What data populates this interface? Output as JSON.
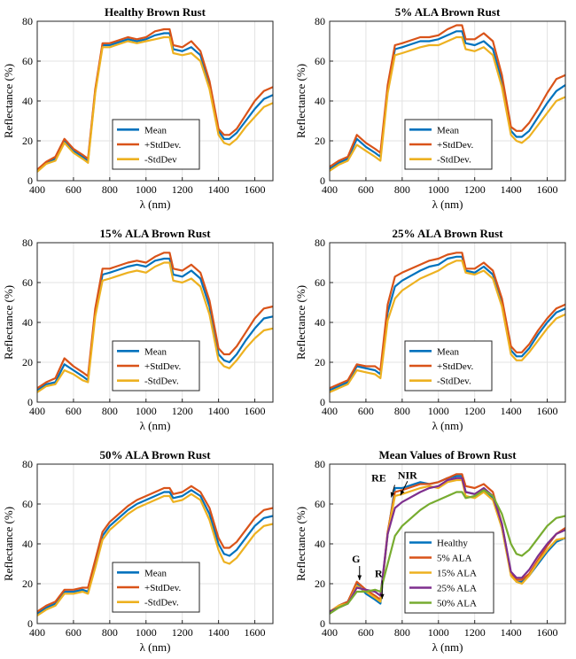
{
  "colors": {
    "mean": "#0072BD",
    "plus": "#D95319",
    "minus": "#EDB120",
    "purple": "#7E2F8E",
    "green": "#77AC30"
  },
  "chart_data": [
    {
      "type": "line",
      "title": "Healthy Brown Rust",
      "xlabel": "λ  (nm)",
      "ylabel": "Reflectance  (%)",
      "xlim": [
        400,
        1700
      ],
      "ylim": [
        0,
        80
      ],
      "xticks": [
        "400",
        "600",
        "800",
        "1000",
        "1200",
        "1400",
        "1600"
      ],
      "yticks": [
        "0",
        "20",
        "40",
        "60",
        "80"
      ],
      "x": [
        400,
        450,
        500,
        550,
        600,
        650,
        680,
        720,
        760,
        800,
        900,
        950,
        1000,
        1050,
        1100,
        1130,
        1150,
        1200,
        1250,
        1300,
        1350,
        1400,
        1430,
        1460,
        1500,
        1550,
        1600,
        1650,
        1700
      ],
      "series": [
        {
          "name": "Mean",
          "color": "mean",
          "values": [
            5,
            9,
            11,
            20,
            15,
            12,
            10,
            45,
            68,
            68,
            71,
            70,
            71,
            73,
            74,
            74,
            66,
            65,
            67,
            63,
            48,
            25,
            21,
            21,
            24,
            30,
            36,
            41,
            43
          ]
        },
        {
          "name": "+StdDev.",
          "color": "plus",
          "values": [
            5.5,
            9.5,
            12,
            21,
            16,
            13,
            11,
            46,
            69,
            69,
            72,
            71,
            72,
            75,
            76,
            76,
            68,
            67,
            70,
            65,
            50,
            26,
            23,
            23,
            26,
            33,
            40,
            45,
            47
          ]
        },
        {
          "name": "-StdDev",
          "color": "minus",
          "values": [
            4.5,
            8.5,
            10,
            19,
            14,
            11,
            9,
            44,
            67,
            67,
            70,
            69,
            70,
            71,
            72,
            72,
            64,
            63,
            64,
            60,
            46,
            23,
            19,
            18,
            21,
            27,
            32,
            37,
            39
          ]
        }
      ],
      "legend": "bottom-center"
    },
    {
      "type": "line",
      "title": "5% ALA Brown Rust",
      "xlabel": "λ  (nm)",
      "ylabel": "Reflectance  (%)",
      "xlim": [
        400,
        1700
      ],
      "ylim": [
        0,
        80
      ],
      "xticks": [
        "400",
        "600",
        "800",
        "1000",
        "1200",
        "1400",
        "1600"
      ],
      "yticks": [
        "0",
        "20",
        "40",
        "60",
        "80"
      ],
      "x": [
        400,
        450,
        500,
        550,
        600,
        650,
        680,
        720,
        760,
        800,
        900,
        950,
        1000,
        1050,
        1100,
        1130,
        1150,
        1200,
        1250,
        1300,
        1350,
        1400,
        1430,
        1460,
        1500,
        1550,
        1600,
        1650,
        1700
      ],
      "series": [
        {
          "name": "Mean",
          "color": "mean",
          "values": [
            6,
            9,
            11,
            21,
            17,
            14,
            12,
            46,
            66,
            67,
            70,
            70,
            71,
            73,
            75,
            75,
            69,
            68,
            70,
            66,
            50,
            25,
            22,
            22,
            25,
            32,
            39,
            45,
            48
          ]
        },
        {
          "name": "+StdDev.",
          "color": "plus",
          "values": [
            7,
            10,
            12,
            23,
            19,
            16,
            14,
            48,
            68,
            69,
            72,
            72,
            73,
            76,
            78,
            78,
            71,
            71,
            74,
            70,
            53,
            27,
            25,
            25,
            29,
            36,
            44,
            51,
            53
          ]
        },
        {
          "name": "-StdDev.",
          "color": "minus",
          "values": [
            5,
            8,
            10,
            18,
            15,
            12,
            10,
            44,
            63,
            64,
            67,
            68,
            68,
            70,
            72,
            72,
            66,
            65,
            67,
            63,
            47,
            23,
            20,
            19,
            22,
            28,
            34,
            40,
            42
          ]
        }
      ],
      "legend": "bottom-center"
    },
    {
      "type": "line",
      "title": "15% ALA Brown Rust",
      "xlabel": "λ  (nm)",
      "ylabel": "Reflectance  (%)",
      "xlim": [
        400,
        1700
      ],
      "ylim": [
        0,
        80
      ],
      "xticks": [
        "400",
        "600",
        "800",
        "1000",
        "1200",
        "1400",
        "1600"
      ],
      "yticks": [
        "0",
        "20",
        "40",
        "60",
        "80"
      ],
      "x": [
        400,
        450,
        500,
        550,
        600,
        650,
        680,
        720,
        760,
        800,
        900,
        950,
        1000,
        1050,
        1100,
        1130,
        1150,
        1200,
        1250,
        1300,
        1350,
        1400,
        1430,
        1460,
        1500,
        1550,
        1600,
        1650,
        1700
      ],
      "series": [
        {
          "name": "Mean",
          "color": "mean",
          "values": [
            6,
            9,
            10,
            19,
            16,
            13,
            11,
            45,
            64,
            65,
            68,
            69,
            68,
            71,
            72,
            72,
            64,
            63,
            66,
            62,
            48,
            24,
            21,
            20,
            24,
            31,
            37,
            42,
            43
          ]
        },
        {
          "name": "+StdDev.",
          "color": "plus",
          "values": [
            7,
            10,
            12,
            22,
            18,
            15,
            13,
            47,
            67,
            67,
            70,
            71,
            70,
            73,
            75,
            75,
            67,
            66,
            69,
            65,
            51,
            27,
            24,
            24,
            28,
            35,
            42,
            47,
            48
          ]
        },
        {
          "name": "-StdDev.",
          "color": "minus",
          "values": [
            5,
            8,
            9,
            16,
            14,
            11,
            10,
            43,
            61,
            62,
            65,
            66,
            65,
            68,
            70,
            70,
            61,
            60,
            62,
            58,
            44,
            21,
            18,
            17,
            21,
            27,
            32,
            36,
            37
          ]
        }
      ],
      "legend": "bottom-center"
    },
    {
      "type": "line",
      "title": "25% ALA Brown Rust",
      "xlabel": "λ  (nm)",
      "ylabel": "Reflectance  (%)",
      "xlim": [
        400,
        1700
      ],
      "ylim": [
        0,
        80
      ],
      "xticks": [
        "400",
        "600",
        "800",
        "1000",
        "1200",
        "1400",
        "1600"
      ],
      "yticks": [
        "0",
        "20",
        "40",
        "60",
        "80"
      ],
      "x": [
        400,
        450,
        500,
        550,
        600,
        650,
        680,
        720,
        760,
        800,
        900,
        950,
        1000,
        1050,
        1100,
        1130,
        1150,
        1200,
        1250,
        1300,
        1350,
        1400,
        1430,
        1460,
        1500,
        1550,
        1600,
        1650,
        1700
      ],
      "series": [
        {
          "name": "Mean",
          "color": "mean",
          "values": [
            6,
            8,
            10,
            18,
            17,
            16,
            14,
            45,
            58,
            61,
            66,
            68,
            69,
            72,
            73,
            73,
            66,
            65,
            68,
            64,
            50,
            26,
            23,
            23,
            27,
            34,
            40,
            45,
            47
          ]
        },
        {
          "name": "+StdDev.",
          "color": "plus",
          "values": [
            7,
            9,
            11,
            19,
            18,
            18,
            16,
            49,
            63,
            65,
            69,
            71,
            72,
            74,
            75,
            75,
            67,
            67,
            70,
            66,
            52,
            28,
            25,
            25,
            29,
            36,
            42,
            47,
            49
          ]
        },
        {
          "name": "-StdDev.",
          "color": "minus",
          "values": [
            5,
            7,
            9,
            16,
            15,
            14,
            12,
            41,
            52,
            56,
            62,
            64,
            66,
            69,
            71,
            71,
            65,
            64,
            66,
            62,
            48,
            24,
            21,
            21,
            25,
            31,
            37,
            42,
            44
          ]
        }
      ],
      "legend": "bottom-center"
    },
    {
      "type": "line",
      "title": "50% ALA Brown Rust",
      "xlabel": "λ  (nm)",
      "ylabel": "Reflectance  (%)",
      "xlim": [
        400,
        1700
      ],
      "ylim": [
        0,
        80
      ],
      "xticks": [
        "400",
        "600",
        "800",
        "1000",
        "1200",
        "1400",
        "1600"
      ],
      "yticks": [
        "0",
        "20",
        "40",
        "60",
        "80"
      ],
      "x": [
        400,
        450,
        500,
        550,
        600,
        650,
        680,
        720,
        760,
        800,
        900,
        950,
        1000,
        1050,
        1100,
        1130,
        1150,
        1200,
        1250,
        1300,
        1350,
        1400,
        1430,
        1460,
        1500,
        1550,
        1600,
        1650,
        1700
      ],
      "series": [
        {
          "name": "Mean",
          "color": "mean",
          "values": [
            5,
            8,
            10,
            16,
            16,
            17,
            16,
            30,
            44,
            49,
            57,
            60,
            62,
            64,
            66,
            66,
            63,
            64,
            67,
            64,
            55,
            40,
            35,
            34,
            37,
            43,
            49,
            53,
            54
          ]
        },
        {
          "name": "+StdDev.",
          "color": "plus",
          "values": [
            6,
            9,
            11,
            17,
            17,
            18,
            18,
            32,
            46,
            51,
            59,
            62,
            64,
            66,
            68,
            68,
            65,
            66,
            69,
            66,
            58,
            43,
            38,
            38,
            41,
            47,
            53,
            57,
            58
          ]
        },
        {
          "name": "-StdDev.",
          "color": "minus",
          "values": [
            4,
            7,
            9,
            15,
            15,
            16,
            15,
            28,
            42,
            47,
            55,
            58,
            60,
            62,
            64,
            64,
            61,
            62,
            65,
            62,
            52,
            37,
            31,
            30,
            33,
            39,
            45,
            49,
            50
          ]
        }
      ],
      "legend": "bottom-center"
    },
    {
      "type": "line",
      "title": "Mean Values of Brown Rust",
      "xlabel": "λ  (nm)",
      "ylabel": "Reflectance  (%)",
      "xlim": [
        400,
        1700
      ],
      "ylim": [
        0,
        80
      ],
      "xticks": [
        "400",
        "600",
        "800",
        "1000",
        "1200",
        "1400",
        "1600"
      ],
      "yticks": [
        "0",
        "20",
        "40",
        "60",
        "80"
      ],
      "x": [
        400,
        450,
        500,
        550,
        600,
        650,
        680,
        720,
        760,
        800,
        900,
        950,
        1000,
        1050,
        1100,
        1130,
        1150,
        1200,
        1250,
        1300,
        1350,
        1400,
        1430,
        1460,
        1500,
        1550,
        1600,
        1650,
        1700
      ],
      "series": [
        {
          "name": "Healthy",
          "color": "mean",
          "values": [
            5,
            9,
            11,
            20,
            15,
            12,
            10,
            45,
            68,
            68,
            71,
            70,
            71,
            73,
            74,
            74,
            66,
            65,
            67,
            63,
            48,
            25,
            21,
            21,
            24,
            30,
            36,
            41,
            43
          ]
        },
        {
          "name": "5% ALA",
          "color": "plus",
          "values": [
            6,
            9,
            11,
            21,
            17,
            14,
            12,
            46,
            66,
            67,
            70,
            70,
            71,
            73,
            75,
            75,
            69,
            68,
            70,
            66,
            50,
            25,
            22,
            22,
            25,
            32,
            39,
            45,
            48
          ]
        },
        {
          "name": "15% ALA",
          "color": "minus",
          "values": [
            6,
            9,
            10,
            19,
            16,
            13,
            11,
            45,
            64,
            65,
            68,
            69,
            68,
            71,
            72,
            72,
            64,
            63,
            66,
            62,
            48,
            24,
            21,
            20,
            24,
            31,
            37,
            42,
            43
          ]
        },
        {
          "name": "25% ALA",
          "color": "purple",
          "values": [
            6,
            8,
            10,
            18,
            17,
            16,
            14,
            45,
            58,
            61,
            66,
            68,
            69,
            72,
            73,
            73,
            66,
            65,
            68,
            64,
            50,
            26,
            23,
            23,
            27,
            34,
            40,
            45,
            47
          ]
        },
        {
          "name": "50% ALA",
          "color": "green",
          "values": [
            5,
            8,
            10,
            16,
            16,
            17,
            16,
            30,
            44,
            49,
            57,
            60,
            62,
            64,
            66,
            66,
            63,
            64,
            67,
            64,
            55,
            40,
            35,
            34,
            37,
            43,
            49,
            53,
            54
          ]
        }
      ],
      "legend": "bottom-center",
      "annotations": [
        {
          "label": "G",
          "x": 565,
          "y": 20
        },
        {
          "label": "R",
          "x": 680,
          "y": 11
        },
        {
          "label": "RE",
          "x": 720,
          "y": 66
        },
        {
          "label": "NIR",
          "x": 800,
          "y": 67
        }
      ]
    }
  ]
}
